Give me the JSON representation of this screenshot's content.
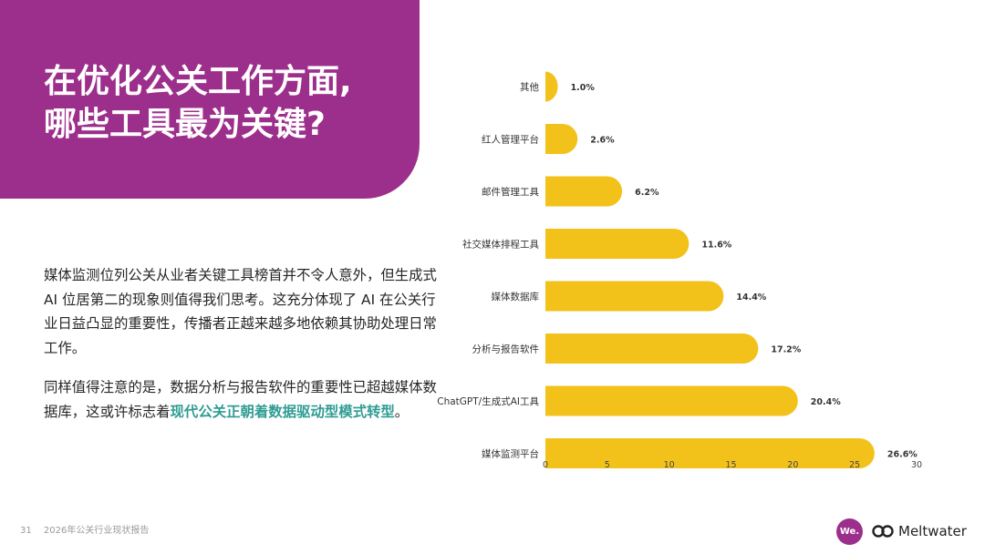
{
  "header": {
    "title_line1": "在优化公关工作方面,",
    "title_line2": "哪些工具最为关键?"
  },
  "body": {
    "p1": "媒体监测位列公关从业者关键工具榜首并不令人意外，但生成式 AI 位居第二的现象则值得我们思考。这充分体现了 AI 在公关行业日益凸显的重要性，传播者正越来越多地依赖其协助处理日常工作。",
    "p2_plain": "同样值得注意的是，数据分析与报告软件的重要性已超越媒体数据库，这或许标志着",
    "p2_highlight": "现代公关正朝着数据驱动型模式转型",
    "p2_end": "。"
  },
  "chart_data": {
    "type": "bar",
    "orientation": "horizontal",
    "categories": [
      "其他",
      "红人管理平台",
      "邮件管理工具",
      "社交媒体排程工具",
      "媒体数据库",
      "分析与报告软件",
      "ChatGPT/生成式AI工具",
      "媒体监测平台"
    ],
    "values": [
      1.0,
      2.6,
      6.2,
      11.6,
      14.4,
      17.2,
      20.4,
      26.6
    ],
    "value_labels": [
      "1.0%",
      "2.6%",
      "6.2%",
      "11.6%",
      "14.4%",
      "17.2%",
      "20.4%",
      "26.6%"
    ],
    "xlim": [
      0,
      30
    ],
    "xticks": [
      "0",
      "5",
      "10",
      "15",
      "20",
      "25",
      "30"
    ],
    "grid": false,
    "bar_color": "#f2c21b"
  },
  "footer": {
    "page_number": "31",
    "report_title": "2026年公关行业现状报告"
  },
  "brand": {
    "we_logo": "We.",
    "meltwater_logo": "Meltwater",
    "accent_color": "#9d2f8c"
  }
}
